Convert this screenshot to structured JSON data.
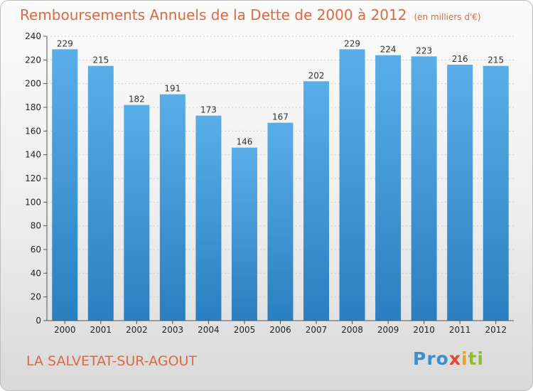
{
  "header": {
    "title": "Remboursements Annuels de la Dette de 2000 à 2012",
    "unit": "(en milliers d'€)"
  },
  "footer": {
    "commune": "LA SALVETAT-SUR-AGOUT",
    "logo": {
      "p": "Pro",
      "x": "x",
      "i": "i",
      "ti": "ti"
    }
  },
  "colors": {
    "bar_top": "#5aaee8",
    "bar_bottom": "#2a7fc0",
    "title": "#e2683c"
  },
  "chart_data": {
    "type": "bar",
    "title": "Remboursements Annuels de la Dette de 2000 à 2012",
    "subtitle": "(en milliers d'€)",
    "categories": [
      "2000",
      "2001",
      "2002",
      "2003",
      "2004",
      "2005",
      "2006",
      "2007",
      "2008",
      "2009",
      "2010",
      "2011",
      "2012"
    ],
    "values": [
      229,
      215,
      182,
      191,
      173,
      146,
      167,
      202,
      229,
      224,
      223,
      216,
      215
    ],
    "ylim": [
      0,
      240
    ],
    "yticks": [
      0,
      20,
      40,
      60,
      80,
      100,
      120,
      140,
      160,
      180,
      200,
      220,
      240
    ],
    "grid": true,
    "data_labels": true
  }
}
